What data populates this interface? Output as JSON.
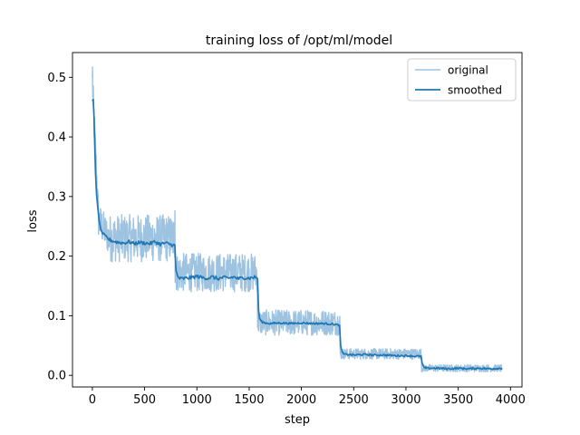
{
  "chart_data": {
    "type": "line",
    "title": "training loss of /opt/ml/model",
    "xlabel": "step",
    "ylabel": "loss",
    "xlim": [
      -190,
      4110
    ],
    "ylim": [
      -0.0195,
      0.5415
    ],
    "xticks": [
      0,
      500,
      1000,
      1500,
      2000,
      2500,
      3000,
      3500,
      4000
    ],
    "yticks": [
      0.0,
      0.1,
      0.2,
      0.3,
      0.4,
      0.5
    ],
    "ytick_labels": [
      "0.0",
      "0.1",
      "0.2",
      "0.3",
      "0.4",
      "0.5"
    ],
    "grid": false,
    "legend_position": "top-right",
    "x_max": 3920,
    "series": [
      {
        "name": "original",
        "color": "#9ec3e0",
        "approx_noise_band": [
          {
            "x_range": [
              0,
              790
            ],
            "low": 0.19,
            "high": 0.27
          },
          {
            "x_range": [
              790,
              1580
            ],
            "low": 0.14,
            "high": 0.205
          },
          {
            "x_range": [
              1580,
              2370
            ],
            "low": 0.067,
            "high": 0.11
          },
          {
            "x_range": [
              2370,
              3150
            ],
            "low": 0.027,
            "high": 0.045
          },
          {
            "x_range": [
              3150,
              3920
            ],
            "low": 0.006,
            "high": 0.018
          }
        ],
        "peaks": [
          {
            "x": 2,
            "y": 0.517
          },
          {
            "x": 790,
            "y": 0.276
          }
        ]
      },
      {
        "name": "smoothed",
        "color": "#1f77b4",
        "x": [
          0,
          8,
          15,
          22,
          30,
          40,
          50,
          65,
          80,
          100,
          130,
          160,
          200,
          250,
          300,
          350,
          400,
          450,
          500,
          550,
          600,
          650,
          700,
          760,
          790,
          800,
          815,
          830,
          850,
          900,
          950,
          1000,
          1050,
          1100,
          1150,
          1200,
          1250,
          1300,
          1350,
          1400,
          1450,
          1500,
          1560,
          1580,
          1590,
          1600,
          1620,
          1650,
          1700,
          1800,
          1900,
          2000,
          2100,
          2200,
          2300,
          2365,
          2375,
          2390,
          2410,
          2450,
          2500,
          2600,
          2700,
          2800,
          2900,
          3000,
          3100,
          3145,
          3155,
          3170,
          3200,
          3300,
          3400,
          3500,
          3600,
          3700,
          3800,
          3920
        ],
        "y": [
          0.46,
          0.463,
          0.44,
          0.39,
          0.34,
          0.305,
          0.285,
          0.26,
          0.245,
          0.237,
          0.232,
          0.228,
          0.225,
          0.223,
          0.222,
          0.224,
          0.221,
          0.223,
          0.222,
          0.221,
          0.224,
          0.22,
          0.222,
          0.219,
          0.218,
          0.175,
          0.166,
          0.163,
          0.162,
          0.163,
          0.164,
          0.166,
          0.164,
          0.163,
          0.165,
          0.162,
          0.164,
          0.163,
          0.165,
          0.162,
          0.164,
          0.163,
          0.165,
          0.162,
          0.11,
          0.095,
          0.09,
          0.088,
          0.087,
          0.088,
          0.087,
          0.088,
          0.087,
          0.087,
          0.086,
          0.084,
          0.05,
          0.038,
          0.035,
          0.035,
          0.034,
          0.035,
          0.034,
          0.034,
          0.033,
          0.033,
          0.032,
          0.032,
          0.02,
          0.013,
          0.012,
          0.012,
          0.011,
          0.012,
          0.011,
          0.012,
          0.011,
          0.012
        ]
      }
    ]
  }
}
